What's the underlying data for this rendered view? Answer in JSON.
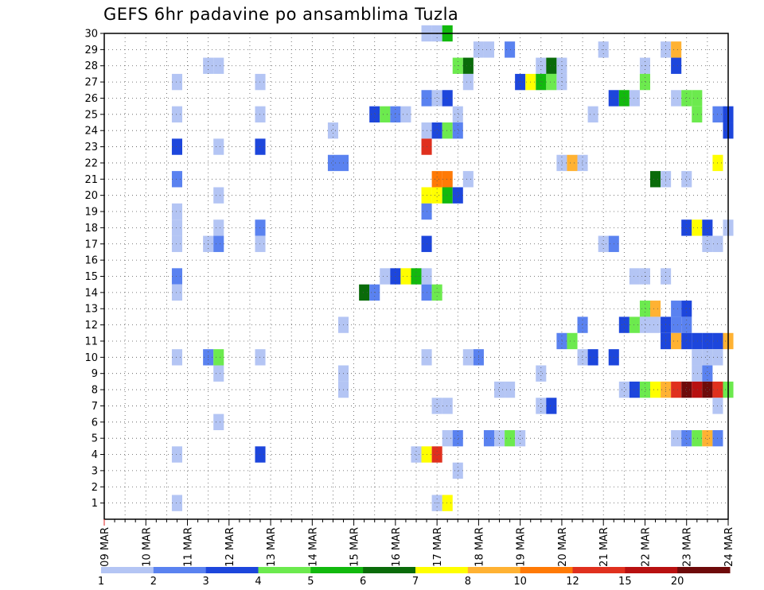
{
  "title": "GEFS 6hr padavine po ansamblima Tuzla",
  "chart_data": {
    "type": "heatmap",
    "title": "GEFS 6hr padavine po ansamblima Tuzla",
    "xlabel": "",
    "ylabel": "",
    "x_tick_labels": [
      "09 MAR",
      "10 MAR",
      "11 MAR",
      "12 MAR",
      "13 MAR",
      "14 MAR",
      "15 MAR",
      "16 MAR",
      "17 MAR",
      "18 MAR",
      "19 MAR",
      "20 MAR",
      "21 MAR",
      "22 MAR",
      "23 MAR",
      "24 MAR"
    ],
    "y_tick_labels": [
      "1",
      "2",
      "3",
      "4",
      "5",
      "6",
      "7",
      "8",
      "9",
      "10",
      "11",
      "12",
      "13",
      "14",
      "15",
      "16",
      "17",
      "18",
      "19",
      "20",
      "21",
      "22",
      "23",
      "24",
      "25",
      "26",
      "27",
      "28",
      "29",
      "30"
    ],
    "x_unit": "6h steps after 09 MAR 00Z",
    "xlim": [
      0,
      60
    ],
    "ylim": [
      0,
      30
    ],
    "grid": true,
    "colorbar": {
      "colors": [
        "#b4c5f4",
        "#5a82f0",
        "#1d46dc",
        "#6cea4e",
        "#12b90e",
        "#0a6b0a",
        "#ffff00",
        "#ffb233",
        "#ff7a06",
        "#e0301e",
        "#b81010",
        "#6e0a0a"
      ],
      "labels": [
        "1",
        "2",
        "3",
        "4",
        "5",
        "6",
        "7",
        "8",
        "10",
        "12",
        "15",
        "20"
      ]
    },
    "levels": [
      1,
      2,
      3,
      4,
      5,
      6,
      7,
      8,
      10,
      12,
      15,
      20,
      30
    ],
    "cells": [
      [
        31,
        30,
        1.5
      ],
      [
        32,
        30,
        1.5
      ],
      [
        33,
        30,
        5.5
      ],
      [
        36,
        29,
        1.5
      ],
      [
        37,
        29,
        1.5
      ],
      [
        39,
        29,
        2.5
      ],
      [
        48,
        29,
        1.5
      ],
      [
        54,
        29,
        1.5
      ],
      [
        55,
        29,
        9
      ],
      [
        10,
        28,
        1.5
      ],
      [
        11,
        28,
        1.5
      ],
      [
        34,
        28,
        4.5
      ],
      [
        35,
        28,
        6.5
      ],
      [
        42,
        28,
        1.5
      ],
      [
        43,
        28,
        6.5
      ],
      [
        44,
        28,
        1.5
      ],
      [
        52,
        28,
        1.5
      ],
      [
        55,
        28,
        3.5
      ],
      [
        7,
        27,
        1.5
      ],
      [
        15,
        27,
        1.5
      ],
      [
        35,
        27,
        1.5
      ],
      [
        40,
        27,
        3.5
      ],
      [
        41,
        27,
        7.5
      ],
      [
        42,
        27,
        5.5
      ],
      [
        43,
        27,
        4.5
      ],
      [
        44,
        27,
        1.5
      ],
      [
        52,
        27,
        4.5
      ],
      [
        31,
        26,
        2.5
      ],
      [
        32,
        26,
        1.5
      ],
      [
        33,
        26,
        3.5
      ],
      [
        49,
        26,
        3.5
      ],
      [
        50,
        26,
        5.5
      ],
      [
        51,
        26,
        1.5
      ],
      [
        55,
        26,
        1.5
      ],
      [
        56,
        26,
        4.5
      ],
      [
        57,
        26,
        4.5
      ],
      [
        7,
        25,
        1.5
      ],
      [
        15,
        25,
        1.5
      ],
      [
        26,
        25,
        3.5
      ],
      [
        27,
        25,
        4.5
      ],
      [
        28,
        25,
        2.5
      ],
      [
        29,
        25,
        1.5
      ],
      [
        34,
        25,
        1.5
      ],
      [
        47,
        25,
        1.5
      ],
      [
        57,
        25,
        4.5
      ],
      [
        59,
        25,
        2.5
      ],
      [
        60,
        25,
        3.5
      ],
      [
        22,
        24,
        1.5
      ],
      [
        31,
        24,
        1.5
      ],
      [
        32,
        24,
        3.5
      ],
      [
        33,
        24,
        4.5
      ],
      [
        34,
        24,
        2.5
      ],
      [
        60,
        24,
        3.5
      ],
      [
        7,
        23,
        3.5
      ],
      [
        11,
        23,
        1.5
      ],
      [
        15,
        23,
        3.5
      ],
      [
        31,
        23,
        13
      ],
      [
        22,
        22,
        2.5
      ],
      [
        23,
        22,
        2.5
      ],
      [
        44,
        22,
        1.5
      ],
      [
        45,
        22,
        9
      ],
      [
        46,
        22,
        1.5
      ],
      [
        59,
        22,
        7.5
      ],
      [
        7,
        21,
        2.5
      ],
      [
        32,
        21,
        11
      ],
      [
        33,
        21,
        11
      ],
      [
        35,
        21,
        1.5
      ],
      [
        53,
        21,
        6.5
      ],
      [
        54,
        21,
        1.5
      ],
      [
        56,
        21,
        1.5
      ],
      [
        11,
        20,
        1.5
      ],
      [
        31,
        20,
        7.5
      ],
      [
        32,
        20,
        7.5
      ],
      [
        33,
        20,
        5.5
      ],
      [
        34,
        20,
        3.5
      ],
      [
        7,
        19,
        1.5
      ],
      [
        31,
        19,
        2.5
      ],
      [
        7,
        18,
        1.5
      ],
      [
        11,
        18,
        1.5
      ],
      [
        15,
        18,
        2.5
      ],
      [
        56,
        18,
        3.5
      ],
      [
        57,
        18,
        7.5
      ],
      [
        58,
        18,
        3.5
      ],
      [
        60,
        18,
        1.5
      ],
      [
        7,
        17,
        1.5
      ],
      [
        10,
        17,
        1.5
      ],
      [
        11,
        17,
        2.5
      ],
      [
        15,
        17,
        1.5
      ],
      [
        31,
        17,
        3.5
      ],
      [
        48,
        17,
        1.5
      ],
      [
        49,
        17,
        2.5
      ],
      [
        58,
        17,
        1.5
      ],
      [
        59,
        17,
        1.5
      ],
      [
        7,
        15,
        2.5
      ],
      [
        27,
        15,
        1.5
      ],
      [
        28,
        15,
        3.5
      ],
      [
        29,
        15,
        7.5
      ],
      [
        30,
        15,
        5.5
      ],
      [
        31,
        15,
        1.5
      ],
      [
        51,
        15,
        1.5
      ],
      [
        52,
        15,
        1.5
      ],
      [
        54,
        15,
        1.5
      ],
      [
        7,
        14,
        1.5
      ],
      [
        25,
        14,
        6.5
      ],
      [
        26,
        14,
        2.5
      ],
      [
        31,
        14,
        2.5
      ],
      [
        32,
        14,
        4.5
      ],
      [
        52,
        13,
        4.5
      ],
      [
        53,
        13,
        9
      ],
      [
        55,
        13,
        2.5
      ],
      [
        56,
        13,
        3.5
      ],
      [
        23,
        12,
        1.5
      ],
      [
        46,
        12,
        2.5
      ],
      [
        50,
        12,
        3.5
      ],
      [
        51,
        12,
        4.5
      ],
      [
        52,
        12,
        1.5
      ],
      [
        53,
        12,
        1.5
      ],
      [
        54,
        12,
        3.5
      ],
      [
        55,
        12,
        2.5
      ],
      [
        56,
        12,
        2.5
      ],
      [
        44,
        11,
        2.5
      ],
      [
        45,
        11,
        4.5
      ],
      [
        54,
        11,
        3.5
      ],
      [
        55,
        11,
        9
      ],
      [
        56,
        11,
        3.5
      ],
      [
        57,
        11,
        3.5
      ],
      [
        58,
        11,
        3.5
      ],
      [
        59,
        11,
        3.5
      ],
      [
        60,
        11,
        9
      ],
      [
        7,
        10,
        1.5
      ],
      [
        10,
        10,
        2.5
      ],
      [
        11,
        10,
        4.5
      ],
      [
        15,
        10,
        1.5
      ],
      [
        31,
        10,
        1.5
      ],
      [
        35,
        10,
        1.5
      ],
      [
        36,
        10,
        2.5
      ],
      [
        46,
        10,
        1.5
      ],
      [
        47,
        10,
        3.5
      ],
      [
        49,
        10,
        3.5
      ],
      [
        57,
        10,
        1.5
      ],
      [
        58,
        10,
        1.5
      ],
      [
        59,
        10,
        1.5
      ],
      [
        11,
        9,
        1.5
      ],
      [
        23,
        9,
        1.5
      ],
      [
        42,
        9,
        1.5
      ],
      [
        57,
        9,
        1.5
      ],
      [
        58,
        9,
        2.5
      ],
      [
        23,
        8,
        1.5
      ],
      [
        38,
        8,
        1.5
      ],
      [
        39,
        8,
        1.5
      ],
      [
        50,
        8,
        1.5
      ],
      [
        51,
        8,
        3.5
      ],
      [
        52,
        8,
        4.5
      ],
      [
        53,
        8,
        7.5
      ],
      [
        54,
        8,
        9
      ],
      [
        55,
        8,
        13
      ],
      [
        56,
        8,
        22
      ],
      [
        57,
        8,
        16
      ],
      [
        58,
        8,
        22
      ],
      [
        59,
        8,
        13
      ],
      [
        60,
        8,
        4.5
      ],
      [
        32,
        7,
        1.5
      ],
      [
        33,
        7,
        1.5
      ],
      [
        42,
        7,
        1.5
      ],
      [
        43,
        7,
        3.5
      ],
      [
        59,
        7,
        1.5
      ],
      [
        11,
        6,
        1.5
      ],
      [
        33,
        5,
        1.5
      ],
      [
        34,
        5,
        2.5
      ],
      [
        37,
        5,
        2.5
      ],
      [
        38,
        5,
        1.5
      ],
      [
        39,
        5,
        4.5
      ],
      [
        40,
        5,
        1.5
      ],
      [
        55,
        5,
        1.5
      ],
      [
        56,
        5,
        2.5
      ],
      [
        57,
        5,
        4.5
      ],
      [
        58,
        5,
        9
      ],
      [
        59,
        5,
        2.5
      ],
      [
        7,
        4,
        1.5
      ],
      [
        15,
        4,
        3.5
      ],
      [
        30,
        4,
        1.5
      ],
      [
        31,
        4,
        7.5
      ],
      [
        32,
        4,
        13
      ],
      [
        34,
        3,
        1.5
      ],
      [
        32,
        1,
        1.5
      ],
      [
        33,
        1,
        7.5
      ],
      [
        7,
        1,
        1.5
      ]
    ]
  }
}
